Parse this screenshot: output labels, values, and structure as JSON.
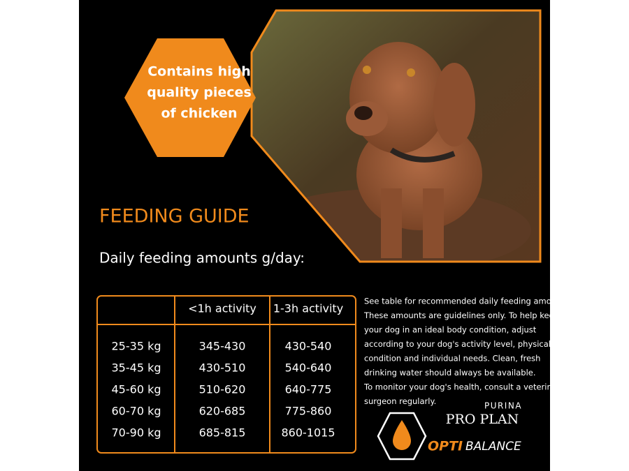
{
  "badge": {
    "lines": [
      "Contains high",
      "quality pieces",
      "of chicken"
    ]
  },
  "heading": "FEEDING GUIDE",
  "subheading": "Daily feeding amounts g/day:",
  "table": {
    "columns": [
      "<1h activity",
      "1-3h activity"
    ],
    "rows": [
      [
        "25-35 kg",
        "345-430",
        "430-540"
      ],
      [
        "35-45 kg",
        "430-510",
        "540-640"
      ],
      [
        "45-60 kg",
        "510-620",
        "640-775"
      ],
      [
        "60-70 kg",
        "620-685",
        "775-860"
      ],
      [
        "70-90 kg",
        "685-815",
        "860-1015"
      ]
    ]
  },
  "notes": [
    "See table for recommended daily feeding amounts.",
    "These amounts are guidelines only. To help keep",
    "your dog in an ideal body condition, adjust",
    "according to your dog's activity level, physical",
    "condition and individual needs. Clean, fresh",
    "drinking water should always be available.",
    "To monitor your dog's health, consult a veterinary",
    "surgeon regularly."
  ],
  "brand": {
    "maker": "PURINA",
    "line": "PRO PLAN",
    "opti": "OPTI",
    "balance": "BALANCE"
  }
}
